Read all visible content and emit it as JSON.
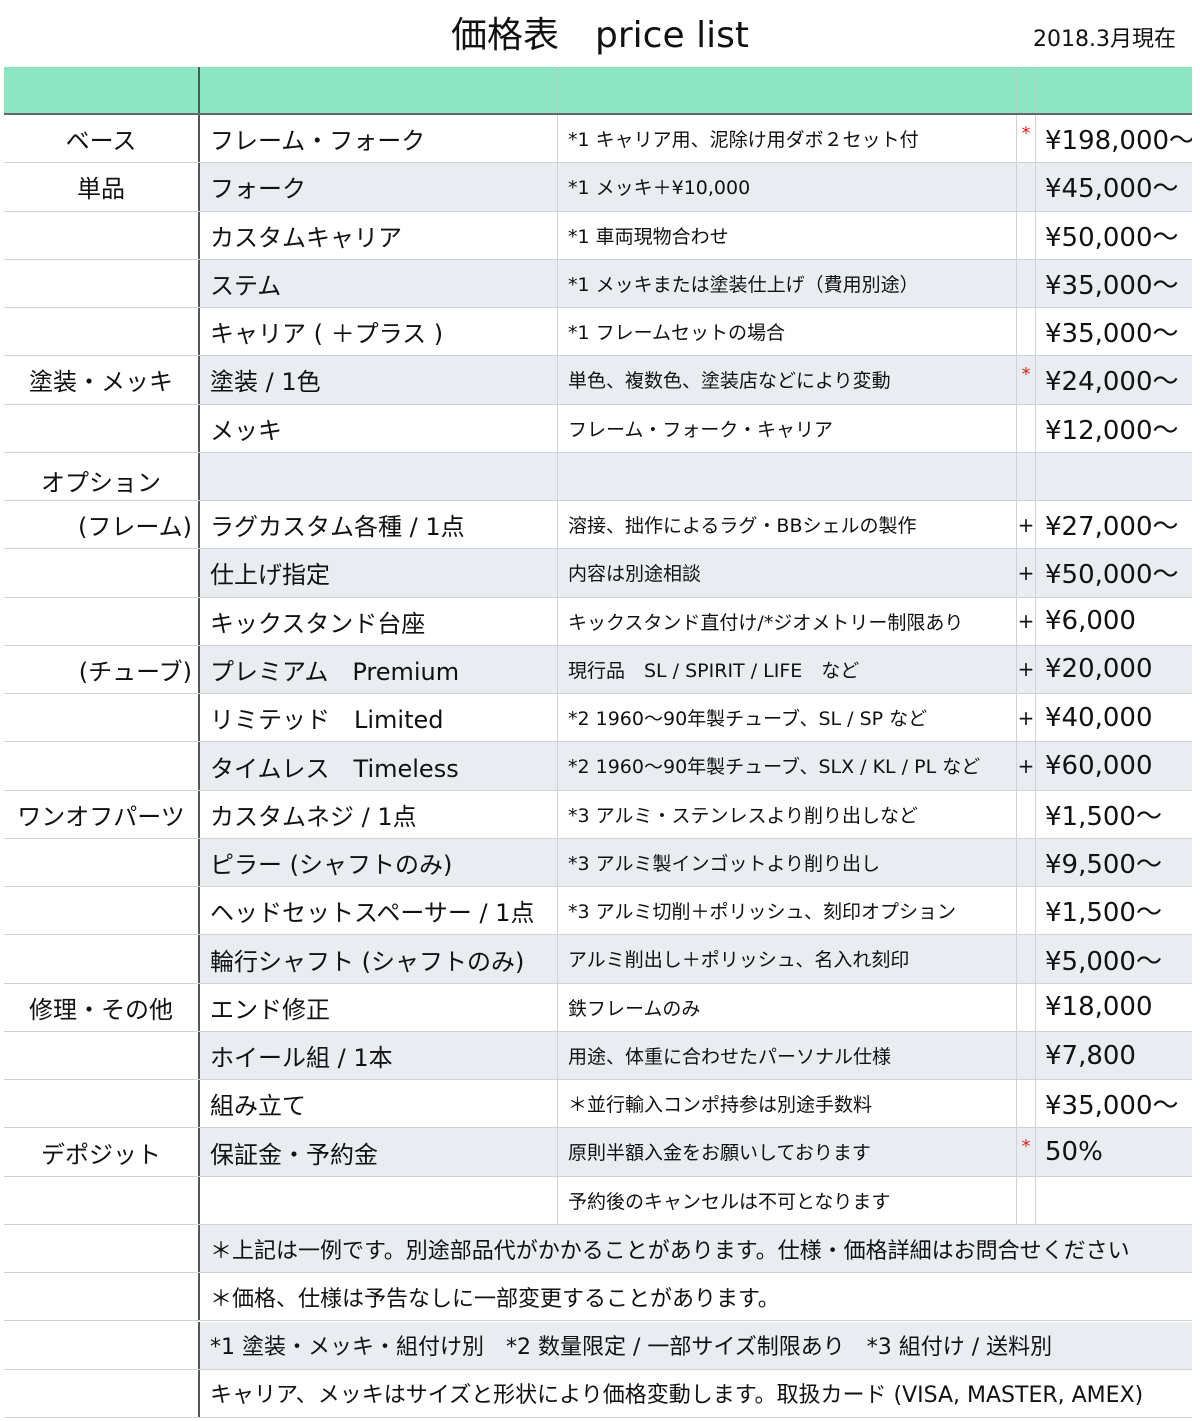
{
  "header": {
    "title": "価格表　price list",
    "date": "2018.3月現在"
  },
  "table": {
    "rows": [
      {
        "section": "ベース",
        "item": "フレーム・フォーク",
        "note": "*1 キャリア用、泥除け用ダボ２セット付",
        "mark": "*",
        "price": "¥198,000〜"
      },
      {
        "section": "単品",
        "item": "フォーク",
        "note": "*1 メッキ＋¥10,000",
        "price": "¥45,000〜"
      },
      {
        "item": "カスタムキャリア",
        "note": "*1 車両現物合わせ",
        "price": "¥50,000〜"
      },
      {
        "item": "ステム",
        "note": "*1 メッキまたは塗装仕上げ（費用別途）",
        "price": "¥35,000〜"
      },
      {
        "item": "キャリア ( ＋プラス )",
        "note": "*1 フレームセットの場合",
        "price": "¥35,000〜"
      },
      {
        "section": "塗装・メッキ",
        "item": "塗装 / 1色",
        "note": "単色、複数色、塗装店などにより変動",
        "mark": "*",
        "price": "¥24,000〜"
      },
      {
        "item": "メッキ",
        "note": "フレーム・フォーク・キャリア",
        "price": "¥12,000〜"
      },
      {
        "section": "オプション"
      },
      {
        "section": "(フレーム)",
        "item": "ラグカスタム各種 / 1点",
        "note": "溶接、拙作によるラグ・BBシェルの製作",
        "mark": "+",
        "price": "¥27,000〜"
      },
      {
        "item": "仕上げ指定",
        "note": "内容は別途相談",
        "mark": "+",
        "price": "¥50,000〜"
      },
      {
        "item": "キックスタンド台座",
        "note": "キックスタンド直付け/*ジオメトリー制限あり",
        "mark": "+",
        "price": "¥6,000"
      },
      {
        "section": "(チューブ)",
        "item": "プレミアム　Premium",
        "note": "現行品　SL / SPIRIT / LIFE　など",
        "mark": "+",
        "price": "¥20,000"
      },
      {
        "item": "リミテッド　Limited",
        "note": "*2 1960〜90年製チューブ、SL / SP など",
        "mark": "+",
        "price": "¥40,000"
      },
      {
        "item": "タイムレス　Timeless",
        "note": "*2 1960〜90年製チューブ、SLX / KL / PL など",
        "mark": "+",
        "price": "¥60,000"
      },
      {
        "section": "ワンオフパーツ",
        "item": "カスタムネジ / 1点",
        "note": "*3 アルミ・ステンレスより削り出しなど",
        "price": "¥1,500〜"
      },
      {
        "item": "ピラー (シャフトのみ)",
        "note": "*3 アルミ製インゴットより削り出し",
        "price": "¥9,500〜"
      },
      {
        "item": "ヘッドセットスペーサー / 1点",
        "note": "*3 アルミ切削＋ポリッシュ、刻印オプション",
        "price": "¥1,500〜"
      },
      {
        "item": "輪行シャフト (シャフトのみ)",
        "note": "アルミ削出し＋ポリッシュ、名入れ刻印",
        "price": "¥5,000〜"
      },
      {
        "section": "修理・その他",
        "item": "エンド修正",
        "note": "鉄フレームのみ",
        "price": "¥18,000"
      },
      {
        "item": "ホイール組 / 1本",
        "note": "用途、体重に合わせたパーソナル仕様",
        "price": "¥7,800"
      },
      {
        "item": "組み立て",
        "note": "＊並行輸入コンポ持参は別途手数料",
        "price": "¥35,000〜"
      },
      {
        "section": "デポジット",
        "item": "保証金・予約金",
        "note": "原則半額入金をお願いしております",
        "mark": "*",
        "price": "50%"
      },
      {
        "note": "予約後のキャンセルは不可となります"
      }
    ],
    "notes": [
      "＊上記は一例です。別途部品代がかかることがあります。仕様・価格詳細はお問合せください",
      "＊価格、仕様は予告なしに一部変更することがあります。",
      "*1 塗装・メッキ・組付け別　*2 数量限定 / 一部サイズ制限あり　*3 組付け / 送料別",
      "キャリア、メッキはサイズと形状により価格変動します。取扱カード (VISA, MASTER, AMEX)"
    ]
  }
}
